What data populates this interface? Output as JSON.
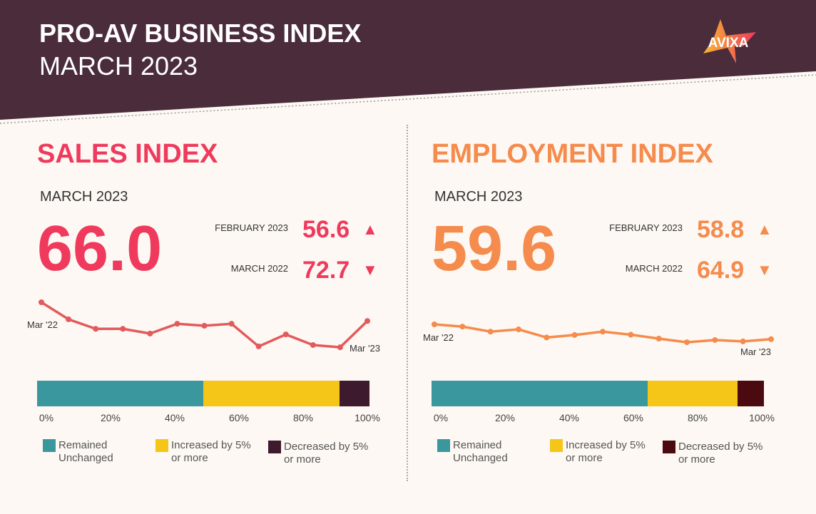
{
  "header": {
    "title": "PRO-AV BUSINESS INDEX",
    "subtitle": "MARCH 2023",
    "logo": "AVIXA"
  },
  "colors": {
    "header": "#4a2c3b",
    "background": "#fdf8f3",
    "sales": "#ef3a5d",
    "sales_line": "#e35a5c",
    "employment": "#f58b4c",
    "remained": "#3a979e",
    "increased": "#f5c518",
    "decreased": "#3d1a2e",
    "decreased_employment": "#4a0a10"
  },
  "chart_data": [
    {
      "type": "line",
      "title": "SALES INDEX",
      "month_label": "MARCH 2023",
      "current": "66.0",
      "comparisons": [
        {
          "label": "FEBRUARY 2023",
          "value": "56.6",
          "direction": "up"
        },
        {
          "label": "MARCH 2022",
          "value": "72.7",
          "direction": "down"
        }
      ],
      "x_labels": {
        "start": "Mar '22",
        "end": "Mar '23"
      },
      "values": [
        72.7,
        66.6,
        63.2,
        63.2,
        61.5,
        65.0,
        64.3,
        65.0,
        56.9,
        61.2,
        57.4,
        56.6,
        66.0
      ],
      "stacked_bar": {
        "ticks": [
          "0%",
          "20%",
          "40%",
          "60%",
          "80%",
          "100%"
        ],
        "segments": [
          {
            "label": "Remained Unchanged",
            "value": 50
          },
          {
            "label": "Increased by 5% or more",
            "value": 41
          },
          {
            "label": "Decreased by 5% or more",
            "value": 9
          }
        ]
      }
    },
    {
      "type": "line",
      "title": "EMPLOYMENT INDEX",
      "month_label": "MARCH 2023",
      "current": "59.6",
      "comparisons": [
        {
          "label": "FEBRUARY 2023",
          "value": "58.8",
          "direction": "up"
        },
        {
          "label": "MARCH 2022",
          "value": "64.9",
          "direction": "down"
        }
      ],
      "x_labels": {
        "start": "Mar '22",
        "end": "Mar '23"
      },
      "values": [
        64.9,
        64.1,
        62.3,
        63.1,
        60.2,
        61.1,
        62.3,
        61.2,
        59.8,
        58.5,
        59.3,
        58.8,
        59.6
      ],
      "stacked_bar": {
        "ticks": [
          "0%",
          "20%",
          "40%",
          "60%",
          "80%",
          "100%"
        ],
        "segments": [
          {
            "label": "Remained Unchanged",
            "value": 65
          },
          {
            "label": "Increased by 5% or more",
            "value": 27
          },
          {
            "label": "Decreased by 5% or more",
            "value": 8
          }
        ]
      }
    }
  ]
}
